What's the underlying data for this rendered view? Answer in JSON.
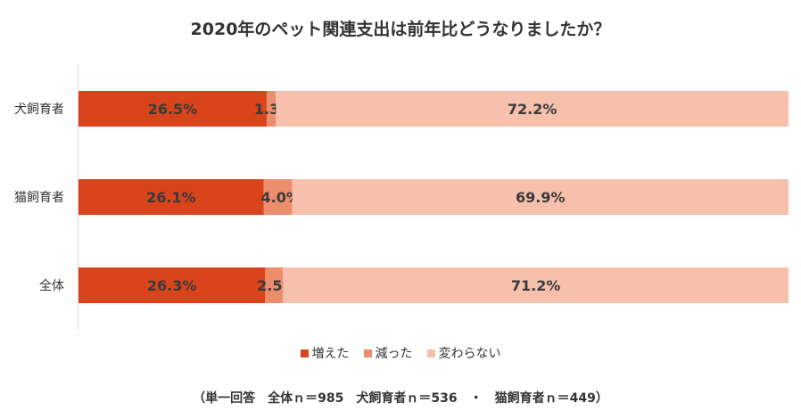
{
  "chart_data": {
    "type": "bar",
    "orientation": "horizontal",
    "stacked": "percent",
    "title": "2020年のペット関連支出は前年比どうなりましたか？",
    "categories": [
      "犬飼育者",
      "猫飼育者",
      "全体"
    ],
    "series": [
      {
        "name": "増えた",
        "color": "#d9441a",
        "values": [
          26.5,
          26.1,
          26.3
        ],
        "labels": [
          "26.5%",
          "26.1%",
          "26.3%"
        ]
      },
      {
        "name": "減った",
        "color": "#ec8e6e",
        "values": [
          1.3,
          4.0,
          2.5
        ],
        "labels": [
          "1.3%",
          "4.0%",
          "2.5%"
        ]
      },
      {
        "name": "変わらない",
        "color": "#f6c0ad",
        "values": [
          72.2,
          69.9,
          71.2
        ],
        "labels": [
          "72.2%",
          "69.9%",
          "71.2%"
        ]
      }
    ],
    "xlim": [
      0,
      100
    ],
    "grid": false,
    "legend": "bottom",
    "footnote": "（単一回答　全体ｎ＝985　犬飼育者ｎ＝536　・　猫飼育者ｎ＝449）"
  }
}
